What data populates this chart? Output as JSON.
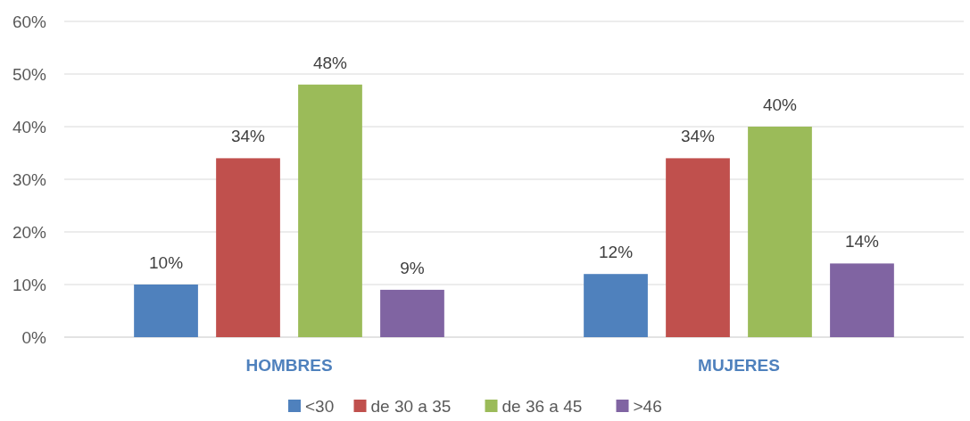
{
  "chart_data": {
    "type": "bar",
    "categories": [
      "HOMBRES",
      "MUJERES"
    ],
    "series": [
      {
        "name": "<30",
        "color": "#4f81bd",
        "values": [
          10,
          12
        ],
        "value_labels": [
          "10%",
          "12%"
        ]
      },
      {
        "name": "de 30 a 35",
        "color": "#c0504d",
        "values": [
          34,
          34
        ],
        "value_labels": [
          "34%",
          "34%"
        ]
      },
      {
        "name": "de 36 a 45",
        "color": "#9bbb59",
        "values": [
          48,
          40
        ],
        "value_labels": [
          "48%",
          "40%"
        ]
      },
      {
        "name": ">46",
        "color": "#8064a2",
        "values": [
          9,
          14
        ],
        "value_labels": [
          "9%",
          "14%"
        ]
      }
    ],
    "ylim": [
      0,
      60
    ],
    "yticks": [
      {
        "value": 0,
        "label": "0%"
      },
      {
        "value": 10,
        "label": "10%"
      },
      {
        "value": 20,
        "label": "20%"
      },
      {
        "value": 30,
        "label": "30%"
      },
      {
        "value": 40,
        "label": "40%"
      },
      {
        "value": 50,
        "label": "50%"
      },
      {
        "value": 60,
        "label": "60%"
      }
    ],
    "grid": "y",
    "legend": "bottom"
  }
}
